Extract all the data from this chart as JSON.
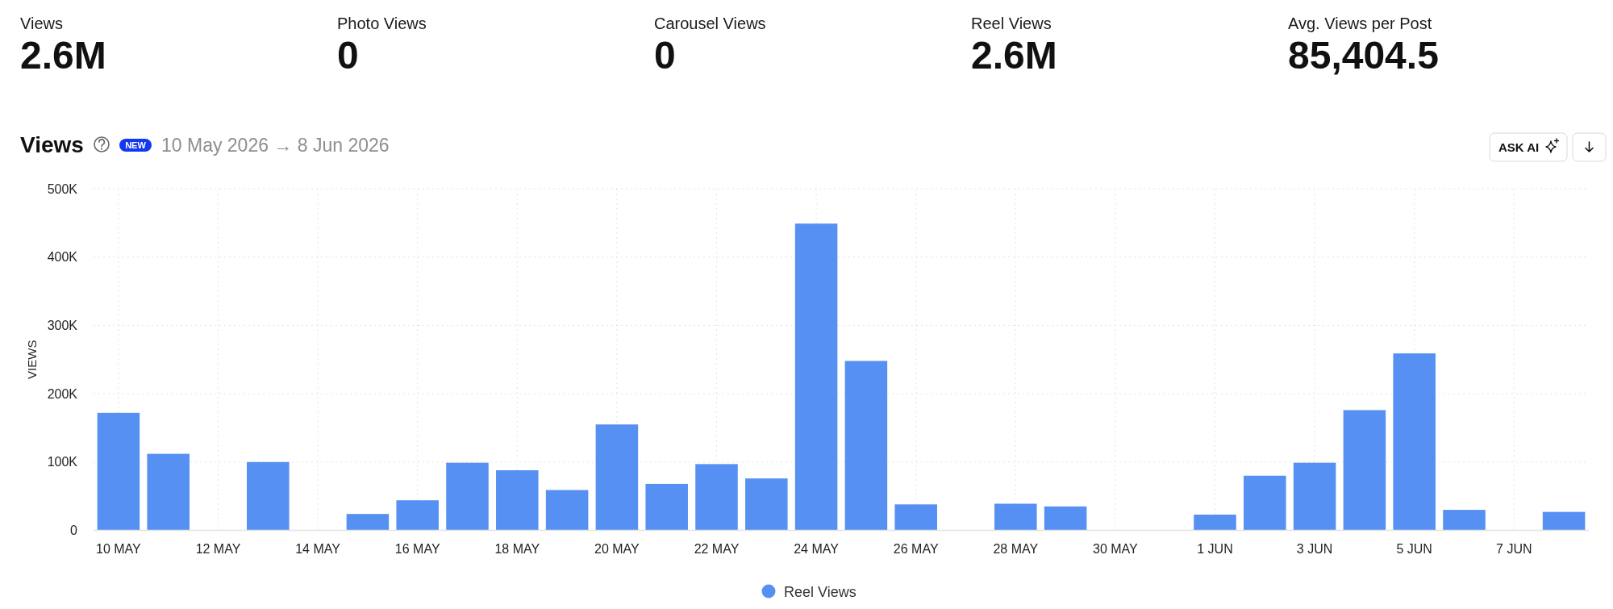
{
  "chart_data": [
    {
      "type": "other",
      "categories": [
        "Views",
        "Photo Views",
        "Carousel Views",
        "Reel Views",
        "Avg. Views per Post"
      ],
      "value_labels": [
        "2.6M",
        "0",
        "0",
        "2.6M",
        "85,404.5"
      ]
    },
    {
      "type": "bar",
      "title": "Views",
      "subtitle": "10 May 2026 → 8 Jun 2026",
      "annotations": [
        "NEW",
        "ASK AI"
      ],
      "ylabel": "VIEWS",
      "categories": [
        "10 MAY",
        null,
        "12 MAY",
        null,
        "14 MAY",
        null,
        "16 MAY",
        null,
        "18 MAY",
        null,
        "20 MAY",
        null,
        "22 MAY",
        null,
        "24 MAY",
        null,
        "26 MAY",
        null,
        "28 MAY",
        null,
        "30 MAY",
        null,
        "1 JUN",
        null,
        "3 JUN",
        null,
        "5 JUN",
        null,
        "7 JUN",
        null
      ],
      "series": [
        {
          "name": "Reel Views",
          "color": "#5690f2",
          "values": [
            172000,
            112000,
            0,
            100000,
            0,
            24000,
            44000,
            99000,
            88000,
            59000,
            155000,
            68000,
            97000,
            76000,
            449000,
            248000,
            38000,
            0,
            39000,
            35000,
            0,
            0,
            23000,
            80000,
            99000,
            176000,
            259000,
            30000,
            0,
            27000
          ]
        }
      ],
      "ylim": [
        0,
        500000
      ],
      "yticks": [
        0,
        {
          "value": 100000,
          "label": "100K"
        },
        {
          "value": 200000,
          "label": "200K"
        },
        {
          "value": 300000,
          "label": "300K"
        },
        {
          "value": 400000,
          "label": "400K"
        },
        {
          "value": 500000,
          "label": "500K"
        }
      ],
      "grid": true,
      "legend": "bottom"
    }
  ]
}
